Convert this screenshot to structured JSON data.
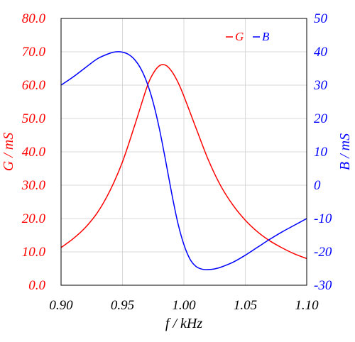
{
  "chart_data": {
    "type": "line",
    "xlabel": "f / kHz",
    "ylabel_left": "G / mS",
    "ylabel_right": "B / mS",
    "xlim": [
      0.9,
      1.1
    ],
    "ylim_left": [
      0,
      80
    ],
    "ylim_right": [
      -30,
      50
    ],
    "x_ticks": [
      "0.90",
      "0.95",
      "1.00",
      "1.05",
      "1.10"
    ],
    "y_ticks_left": [
      "0.0",
      "10.0",
      "20.0",
      "30.0",
      "40.0",
      "50.0",
      "60.0",
      "70.0",
      "80.0"
    ],
    "y_ticks_right": [
      "-30",
      "-20",
      "-10",
      "0",
      "10",
      "20",
      "30",
      "40",
      "50"
    ],
    "grid": true,
    "legend_position": "top-right",
    "colors": {
      "G": "#ff0000",
      "B": "#0000ff",
      "grid": "#d9d9d9"
    },
    "series": [
      {
        "name": "G",
        "axis": "left",
        "x": [
          0.9,
          0.91,
          0.92,
          0.93,
          0.94,
          0.95,
          0.96,
          0.97,
          0.975,
          0.98,
          0.985,
          0.99,
          0.995,
          1.0,
          1.01,
          1.02,
          1.03,
          1.04,
          1.05,
          1.06,
          1.07,
          1.08,
          1.09,
          1.1
        ],
        "y": [
          11.3,
          14.0,
          17.4,
          22.0,
          28.5,
          37.0,
          48.0,
          59.5,
          63.5,
          65.8,
          66.0,
          64.2,
          61.0,
          56.7,
          47.0,
          37.5,
          29.8,
          24.0,
          19.5,
          16.0,
          13.3,
          11.2,
          9.4,
          8.0
        ]
      },
      {
        "name": "B",
        "axis": "right",
        "x": [
          0.9,
          0.91,
          0.92,
          0.93,
          0.94,
          0.945,
          0.95,
          0.955,
          0.96,
          0.965,
          0.97,
          0.975,
          0.98,
          0.985,
          0.99,
          0.995,
          1.0,
          1.005,
          1.01,
          1.015,
          1.02,
          1.025,
          1.03,
          1.04,
          1.05,
          1.06,
          1.07,
          1.08,
          1.09,
          1.1
        ],
        "y": [
          30.0,
          32.5,
          35.3,
          38.0,
          39.6,
          40.0,
          39.9,
          39.2,
          37.6,
          34.9,
          30.7,
          24.8,
          17.0,
          7.6,
          -2.3,
          -11.2,
          -17.8,
          -22.2,
          -24.4,
          -25.2,
          -25.3,
          -25.1,
          -24.6,
          -23.1,
          -21.0,
          -18.6,
          -16.2,
          -14.0,
          -12.0,
          -10.0
        ]
      }
    ]
  }
}
